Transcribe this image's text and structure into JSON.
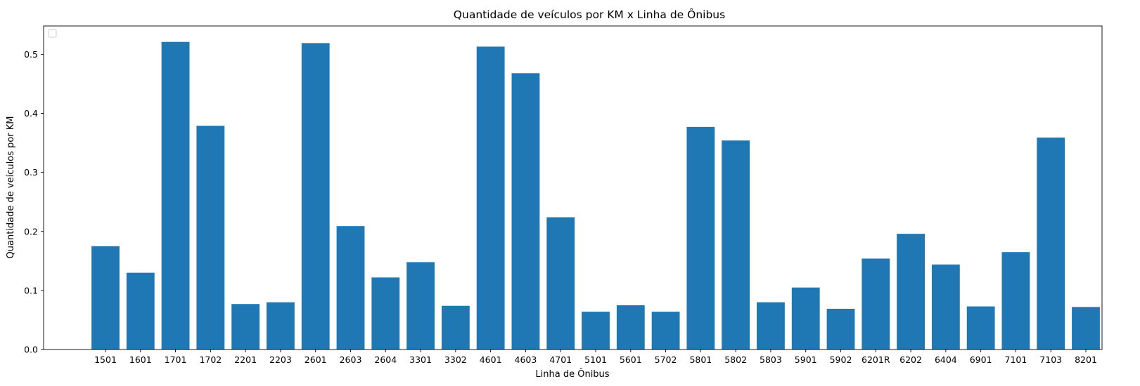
{
  "chart_data": {
    "type": "bar",
    "title": "Quantidade de veículos por KM x Linha de Ônibus",
    "xlabel": "Linha de Ônibus",
    "ylabel": "Quantidade de veículos por KM",
    "ylim": [
      0,
      0.548
    ],
    "yticks": [
      "0.0",
      "0.1",
      "0.2",
      "0.3",
      "0.4",
      "0.5"
    ],
    "legend": "top-left",
    "grid": false,
    "bar_color": "#1f77b4",
    "categories": [
      "1501",
      "1601",
      "1701",
      "1702",
      "2201",
      "2203",
      "2601",
      "2603",
      "2604",
      "3301",
      "3302",
      "4601",
      "4603",
      "4701",
      "5101",
      "5601",
      "5702",
      "5801",
      "5802",
      "5803",
      "5901",
      "5902",
      "6201R",
      "6202",
      "6404",
      "6901",
      "7101",
      "7103",
      "8201"
    ],
    "values": [
      0.175,
      0.13,
      0.521,
      0.379,
      0.077,
      0.08,
      0.519,
      0.209,
      0.122,
      0.148,
      0.074,
      0.513,
      0.468,
      0.224,
      0.064,
      0.075,
      0.064,
      0.377,
      0.354,
      0.08,
      0.105,
      0.069,
      0.154,
      0.196,
      0.144,
      0.073,
      0.165,
      0.359,
      0.072
    ]
  }
}
